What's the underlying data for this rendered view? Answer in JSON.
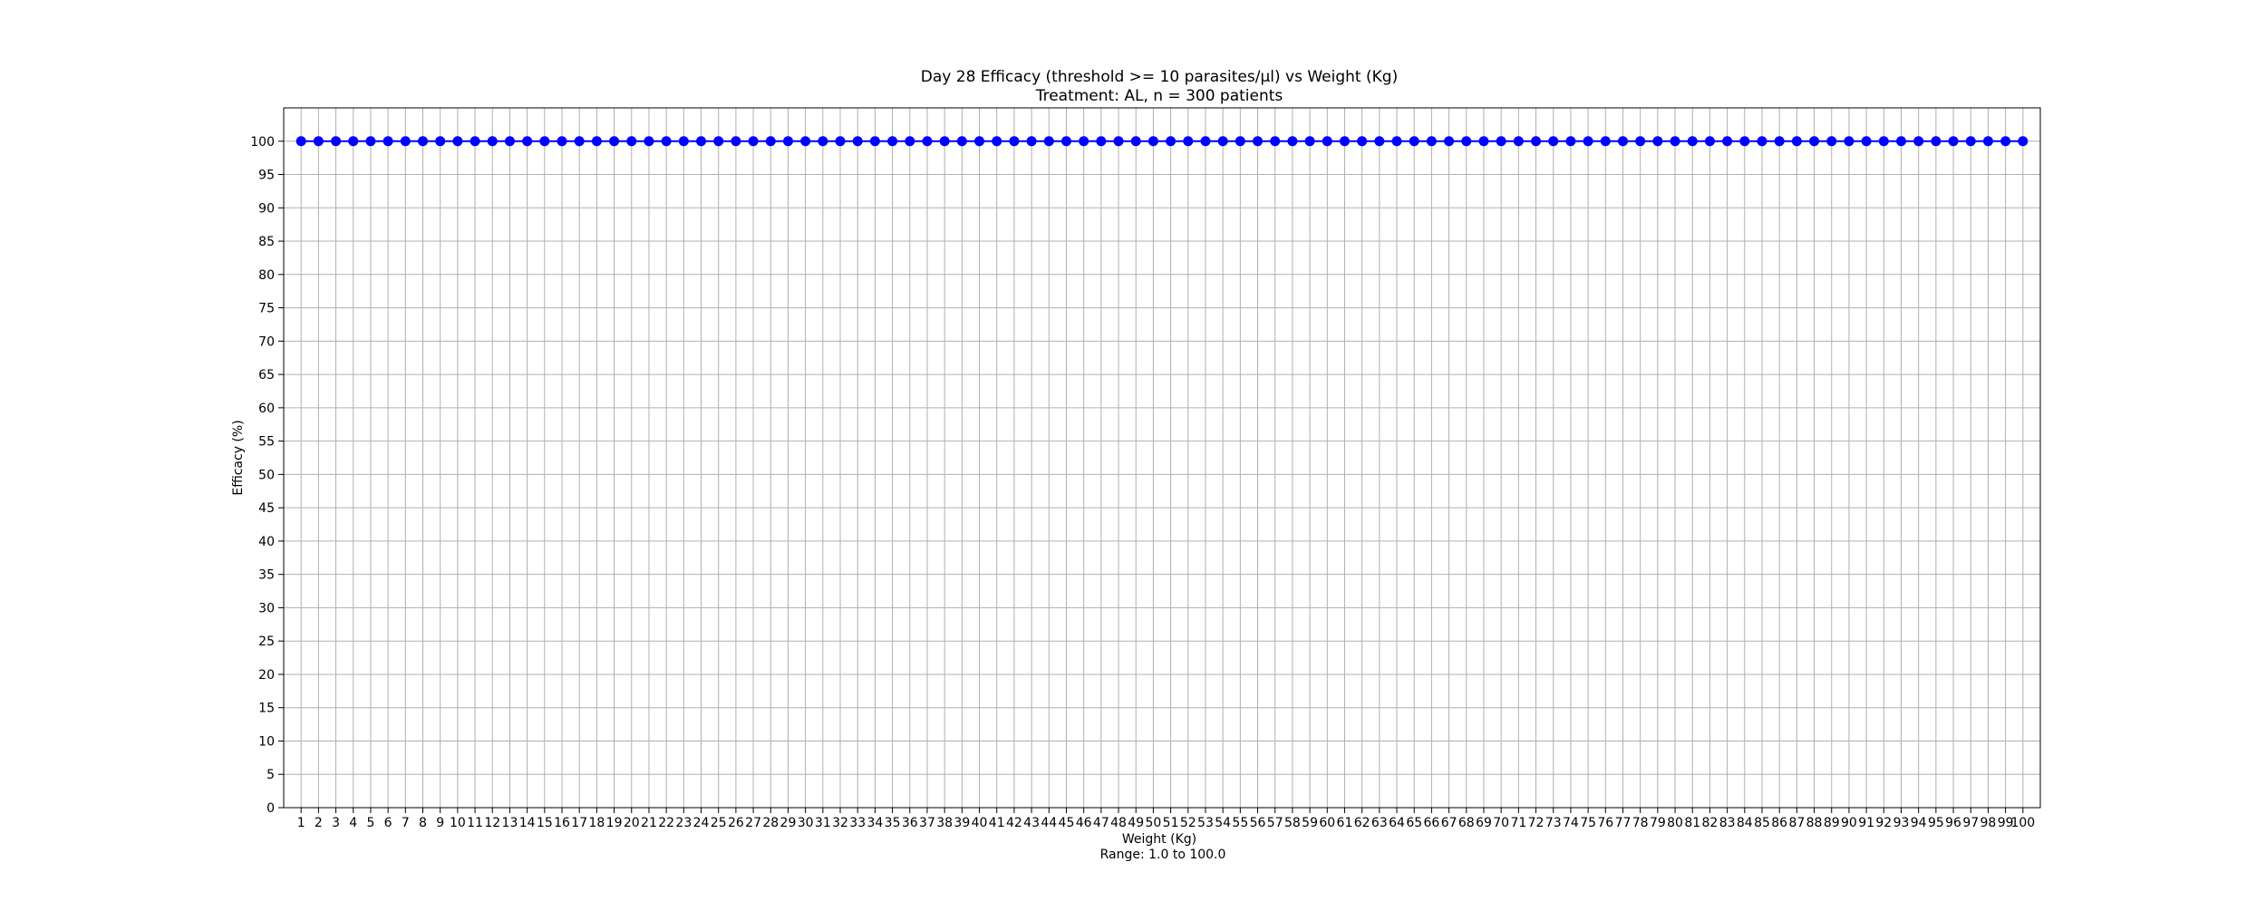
{
  "chart_data": {
    "type": "line",
    "title": "Day 28 Efficacy (threshold >= 10 parasites/µl) vs Weight (Kg)",
    "subtitle": "Treatment: AL, n = 300 patients",
    "xlabel": "Weight (Kg)",
    "xlabel_note": "Range: 1.0 to 100.0",
    "ylabel": "Efficacy (%)",
    "x_start": 1,
    "x_end": 100,
    "xlim": [
      0,
      101
    ],
    "ylim": [
      0,
      105
    ],
    "y_ticks": [
      0,
      5,
      10,
      15,
      20,
      25,
      30,
      35,
      40,
      45,
      50,
      55,
      60,
      65,
      70,
      75,
      80,
      85,
      90,
      95,
      100
    ],
    "grid": true,
    "series": [
      {
        "color": "#0000ff",
        "marker": "circle",
        "values": [
          100,
          100,
          100,
          100,
          100,
          100,
          100,
          100,
          100,
          100,
          100,
          100,
          100,
          100,
          100,
          100,
          100,
          100,
          100,
          100,
          100,
          100,
          100,
          100,
          100,
          100,
          100,
          100,
          100,
          100,
          100,
          100,
          100,
          100,
          100,
          100,
          100,
          100,
          100,
          100,
          100,
          100,
          100,
          100,
          100,
          100,
          100,
          100,
          100,
          100,
          100,
          100,
          100,
          100,
          100,
          100,
          100,
          100,
          100,
          100,
          100,
          100,
          100,
          100,
          100,
          100,
          100,
          100,
          100,
          100,
          100,
          100,
          100,
          100,
          100,
          100,
          100,
          100,
          100,
          100,
          100,
          100,
          100,
          100,
          100,
          100,
          100,
          100,
          100,
          100,
          100,
          100,
          100,
          100,
          100,
          100,
          100,
          100,
          100,
          100
        ]
      }
    ]
  }
}
